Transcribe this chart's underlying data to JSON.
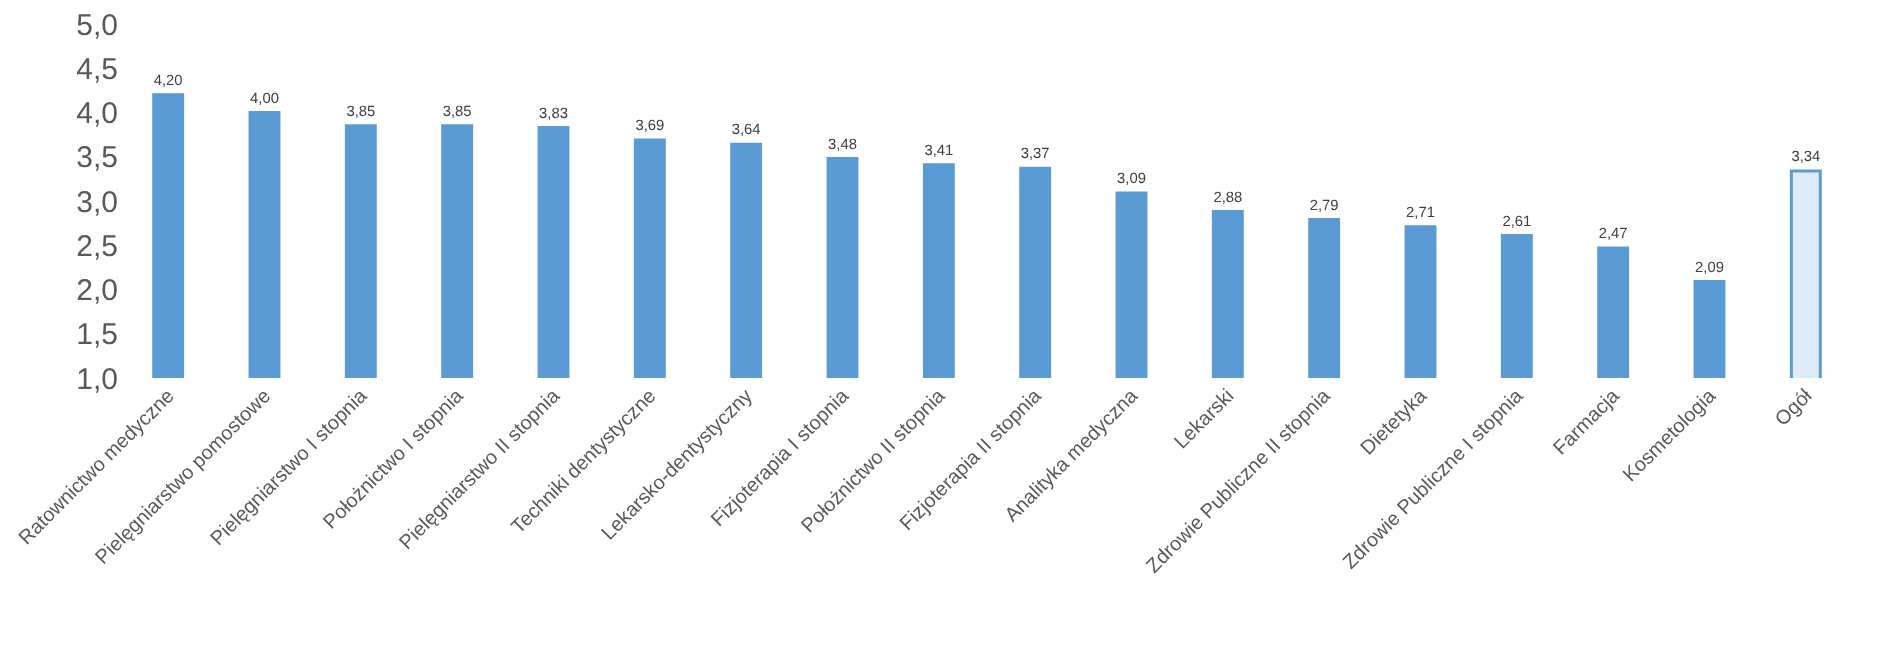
{
  "chart_data": {
    "type": "bar",
    "categories": [
      "Ratownictwo medyczne",
      "Pielęgniarstwo pomostowe",
      "Pielęgniarstwo I stopnia",
      "Położnictwo I stopnia",
      "Pielęgniarstwo II stopnia",
      "Techniki dentystyczne",
      "Lekarsko-dentystyczny",
      "Fizjoterapia I stopnia",
      "Położnictwo II stopnia",
      "Fizjoterapia II stopnia",
      "Analityka medyczna",
      "Lekarski",
      "Zdrowie Publiczne II stopnia",
      "Dietetyka",
      "Zdrowie Publiczne I stopnia",
      "Farmacja",
      "Kosmetologia",
      "Ogół"
    ],
    "values": [
      4.2,
      4.0,
      3.85,
      3.85,
      3.83,
      3.69,
      3.64,
      3.48,
      3.41,
      3.37,
      3.09,
      2.88,
      2.79,
      2.71,
      2.61,
      2.47,
      2.09,
      3.34
    ],
    "value_labels": [
      "4,20",
      "4,00",
      "3,85",
      "3,85",
      "3,83",
      "3,69",
      "3,64",
      "3,48",
      "3,41",
      "3,37",
      "3,09",
      "2,88",
      "2,79",
      "2,71",
      "2,61",
      "2,47",
      "2,09",
      "3,34"
    ],
    "colors": [
      "#5b9bd5",
      "#5b9bd5",
      "#5b9bd5",
      "#5b9bd5",
      "#5b9bd5",
      "#5b9bd5",
      "#5b9bd5",
      "#5b9bd5",
      "#5b9bd5",
      "#5b9bd5",
      "#5b9bd5",
      "#5b9bd5",
      "#5b9bd5",
      "#5b9bd5",
      "#5b9bd5",
      "#5b9bd5",
      "#5b9bd5",
      "#deebf7"
    ],
    "ylim": [
      1,
      5
    ],
    "yticks": [
      {
        "value": 1,
        "label": "1,0"
      },
      {
        "value": 1.5,
        "label": "1,5"
      },
      {
        "value": 2,
        "label": "2,0"
      },
      {
        "value": 2.5,
        "label": "2,5"
      },
      {
        "value": 3,
        "label": "3,0"
      },
      {
        "value": 3.5,
        "label": "3,5"
      },
      {
        "value": 4,
        "label": "4,0"
      },
      {
        "value": 4.5,
        "label": "4,5"
      },
      {
        "value": 5,
        "label": "5,0"
      }
    ],
    "grid": false,
    "legend": false
  }
}
